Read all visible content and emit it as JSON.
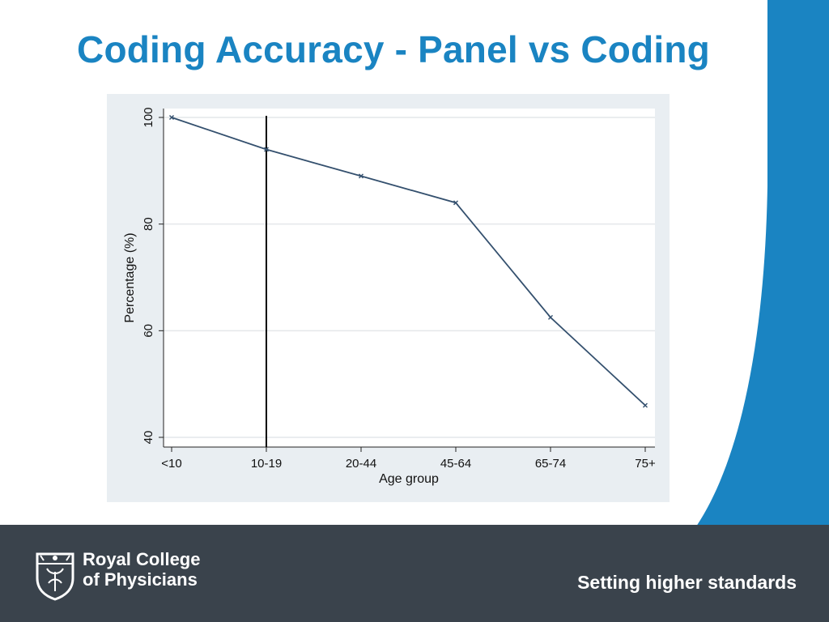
{
  "slide": {
    "title": "Coding Accuracy - Panel vs Coding"
  },
  "colors": {
    "title": "#1a84c2",
    "accent": "#1a84c2",
    "footer": "#3a434c",
    "line": "#34506e"
  },
  "footer": {
    "org_line1": "Royal College",
    "org_line2": "of Physicians",
    "tagline": "Setting higher standards",
    "logo_icon": "rcp-crest-icon"
  },
  "chart_data": {
    "type": "line",
    "categories": [
      "<10",
      "10-19",
      "20-44",
      "45-64",
      "65-74",
      "75+"
    ],
    "series": [
      {
        "values": [
          100,
          94,
          89,
          84,
          62.5,
          46
        ]
      }
    ],
    "xlabel": "Age group",
    "ylabel": "Percentage (%)",
    "ylim": [
      40,
      100
    ],
    "yticks": [
      40,
      60,
      80,
      100
    ],
    "reference_line_at": "10-19",
    "grid": true
  }
}
